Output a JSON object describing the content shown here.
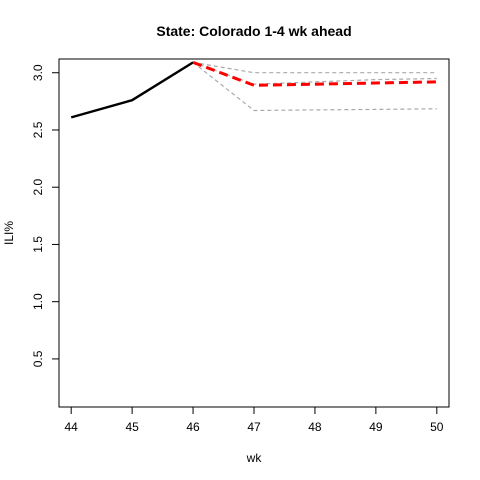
{
  "chart_data": {
    "type": "line",
    "title": "State: Colorado 1-4 wk ahead",
    "xlabel": "wk",
    "ylabel": "ILI%",
    "xlim": [
      43.8,
      50.2
    ],
    "ylim": [
      0.08,
      3.12
    ],
    "x_ticks": [
      44,
      45,
      46,
      47,
      48,
      49,
      50
    ],
    "y_ticks": [
      0.5,
      1.0,
      1.5,
      2.0,
      2.5,
      3.0
    ],
    "y_tick_labels": [
      "0.5",
      "1.0",
      "1.5",
      "2.0",
      "2.5",
      "3.0"
    ],
    "grid": false,
    "series": [
      {
        "style": "observed",
        "color": "#000000",
        "x": [
          44,
          45,
          46
        ],
        "y": [
          2.61,
          2.76,
          3.09
        ]
      },
      {
        "style": "forecast",
        "color": "#ff0000",
        "x": [
          46,
          47,
          48,
          49,
          50
        ],
        "y": [
          3.09,
          2.89,
          2.9,
          2.91,
          2.92
        ]
      },
      {
        "style": "upper-bound",
        "color": "#aaaaaa",
        "x": [
          46,
          47,
          48,
          49,
          50
        ],
        "y": [
          3.09,
          3.0,
          3.0,
          3.0,
          3.0
        ]
      },
      {
        "style": "inner-bound",
        "color": "#aaaaaa",
        "x": [
          46,
          47,
          48,
          49,
          50
        ],
        "y": [
          3.09,
          2.9,
          2.92,
          2.94,
          2.95
        ]
      },
      {
        "style": "lower-bound",
        "color": "#aaaaaa",
        "x": [
          46,
          47,
          48,
          49,
          50
        ],
        "y": [
          3.09,
          2.67,
          2.675,
          2.68,
          2.685
        ]
      }
    ]
  }
}
